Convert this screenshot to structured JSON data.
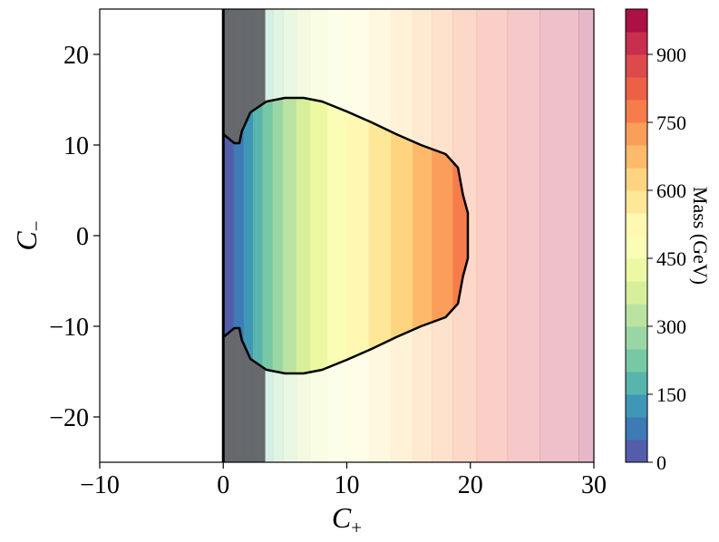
{
  "chart_data": {
    "type": "heatmap",
    "title": "",
    "xlabel": "C",
    "xlabel_sub": "+",
    "ylabel": "C",
    "ylabel_sub": "−",
    "xlim": [
      -10,
      30
    ],
    "ylim": [
      -25,
      25
    ],
    "x_ticks": [
      -10,
      0,
      10,
      20,
      30
    ],
    "x_tick_labels": [
      "−10",
      "0",
      "10",
      "20",
      "30"
    ],
    "y_ticks": [
      -20,
      -10,
      0,
      10,
      20
    ],
    "y_tick_labels": [
      "−20",
      "−10",
      "0",
      "10",
      "20"
    ],
    "grid": false,
    "colorbar": {
      "label": "Mass (GeV)",
      "range": [
        0,
        1000
      ],
      "ticks": [
        0,
        150,
        300,
        450,
        600,
        750,
        900
      ],
      "tick_labels": [
        "0",
        "150",
        "300",
        "450",
        "600",
        "750",
        "900"
      ],
      "colormap": "Spectral_r",
      "levels": 20
    },
    "mass_vs_cplus": {
      "x": [
        0,
        1.5,
        3,
        5,
        7.5,
        10,
        12.5,
        15,
        17.5,
        20,
        22.5,
        25,
        27.5,
        30
      ],
      "mass_gev": [
        0,
        90,
        190,
        310,
        420,
        500,
        570,
        640,
        720,
        790,
        840,
        890,
        930,
        970
      ]
    },
    "masked_region": {
      "condition": "C+ < 0",
      "description_color": "#ffffff"
    },
    "shaded_region": {
      "x_range": [
        0,
        3.4
      ],
      "color": "#5e6063"
    },
    "allowed_region_boundary": {
      "x": [
        0.0,
        0.9,
        1.3,
        1.5,
        2.2,
        3.5,
        5.0,
        6.5,
        8.0,
        10.0,
        12.0,
        14.0,
        16.0,
        18.0,
        19.0,
        19.4,
        19.8,
        19.8,
        19.4,
        19.0,
        18.0,
        16.0,
        14.0,
        12.0,
        10.0,
        8.0,
        6.5,
        5.0,
        3.5,
        2.2,
        1.5,
        1.3,
        0.9,
        0.0
      ],
      "y": [
        11.2,
        10.2,
        10.2,
        11.5,
        13.6,
        14.8,
        15.2,
        15.2,
        14.8,
        13.7,
        12.5,
        11.2,
        10.0,
        9.0,
        7.5,
        4.5,
        2.5,
        -2.5,
        -4.5,
        -7.5,
        -9.0,
        -10.0,
        -11.2,
        -12.5,
        -13.7,
        -14.8,
        -15.2,
        -15.2,
        -14.8,
        -13.6,
        -11.5,
        -10.2,
        -10.2,
        -11.2
      ]
    }
  }
}
